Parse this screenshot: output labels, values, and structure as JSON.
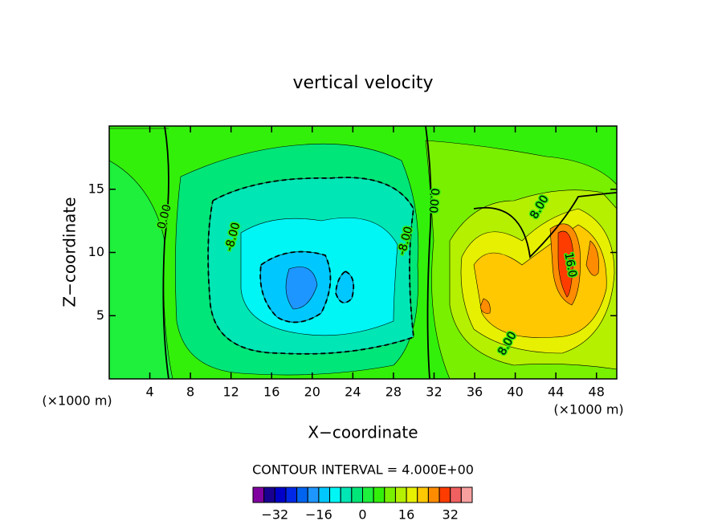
{
  "chart_data": {
    "type": "contour",
    "title": "vertical velocity",
    "x_label": "X−coordinate",
    "y_label": "Z−coordinate",
    "x_unit": "(×1000 m)",
    "y_unit": "(×1000 m)",
    "xlim": [
      0,
      50
    ],
    "ylim": [
      0,
      20
    ],
    "xticks": [
      4,
      8,
      12,
      16,
      20,
      24,
      28,
      32,
      36,
      40,
      44,
      48
    ],
    "yticks": [
      5,
      10,
      15
    ],
    "contour_labels": [
      {
        "value": 0,
        "label": "0.00"
      },
      {
        "value": 0,
        "label": "0.00"
      },
      {
        "value": -8,
        "label": "-8.00"
      },
      {
        "value": -8,
        "label": "-8.00"
      },
      {
        "value": 8,
        "label": "8.00"
      },
      {
        "value": 8,
        "label": "8.00"
      },
      {
        "value": 16,
        "label": "16.0"
      }
    ],
    "interval_label": "CONTOUR INTERVAL = 4.000E+00",
    "colorbar": {
      "levels": [
        -40,
        -36,
        -32,
        -28,
        -24,
        -20,
        -16,
        -12,
        -8,
        -4,
        0,
        4,
        8,
        12,
        16,
        20,
        24,
        28,
        32,
        36,
        40
      ],
      "colors": [
        "#8000a0",
        "#1a0090",
        "#0000c8",
        "#0028e6",
        "#0064f0",
        "#1e96ff",
        "#00c8ff",
        "#00f5f5",
        "#00e6b4",
        "#00e678",
        "#1ef03c",
        "#32f00a",
        "#78f000",
        "#b4f000",
        "#e6f000",
        "#ffc800",
        "#ff8c00",
        "#ff3c00",
        "#f06060",
        "#f8a0a0"
      ],
      "ticks": [
        {
          "value": -32,
          "label": "−32"
        },
        {
          "value": -16,
          "label": "−16"
        },
        0,
        16,
        32
      ]
    }
  }
}
